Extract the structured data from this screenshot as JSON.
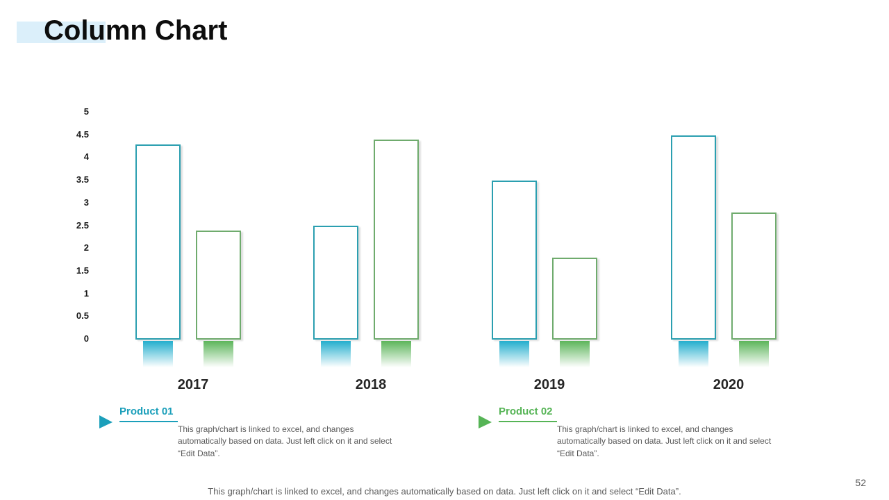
{
  "title": {
    "text": "Column Chart"
  },
  "chart_data": {
    "type": "bar",
    "title": "",
    "xlabel": "",
    "ylabel": "",
    "categories": [
      "2017",
      "2018",
      "2019",
      "2020"
    ],
    "series": [
      {
        "name": "Product 01",
        "values": [
          4.3,
          2.5,
          3.5,
          4.5
        ],
        "outline_color": "#2b9fb0",
        "base_gradient_color": "#23aecd",
        "legend_color": "#1b9fba"
      },
      {
        "name": "Product 02",
        "values": [
          2.4,
          4.4,
          1.8,
          2.8
        ],
        "outline_color": "#6fab6d",
        "base_gradient_color": "#5cb55a",
        "legend_color": "#56b456"
      }
    ],
    "ylim": [
      0,
      5
    ],
    "ytick_step": 0.5,
    "yticks": [
      "5",
      "4.5",
      "4",
      "3.5",
      "3",
      "2.5",
      "2",
      "1.5",
      "1",
      "0.5",
      "0"
    ],
    "grid": false,
    "legend_position": "below",
    "bar_style": "white fill with colored outline and gradient base tab below axis"
  },
  "legend": {
    "items": [
      {
        "name": "Product 01",
        "color": "#1b9fba",
        "marker": "right-triangle-icon",
        "description": "This graph/chart is linked to excel, and changes automatically based on data. Just left click on it and select “Edit Data”."
      },
      {
        "name": "Product 02",
        "color": "#56b456",
        "marker": "right-triangle-icon",
        "description": "This graph/chart is linked to excel, and changes automatically based on data. Just left click on it and select “Edit Data”."
      }
    ]
  },
  "footer": {
    "note": "This graph/chart is linked to excel, and changes automatically based on data. Just left click on it and select “Edit Data”.",
    "page_number": "52"
  },
  "colors": {
    "title_highlight": "#dbeffa",
    "body_text_gray": "#595959",
    "axis_text": "#1a1a1a"
  }
}
